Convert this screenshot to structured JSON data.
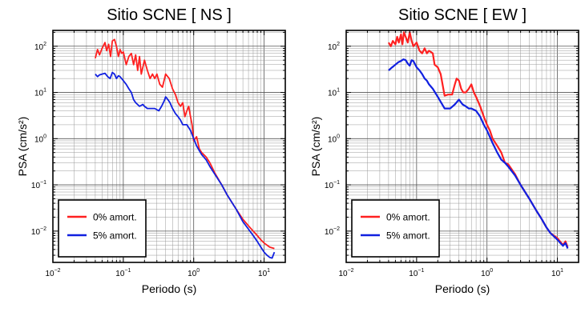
{
  "chart_data": [
    {
      "type": "line",
      "title": "Sitio SCNE [ NS ]",
      "xlabel": "Periodo (s)",
      "ylabel": "PSA (cm/s²)",
      "x_scale": "log",
      "y_scale": "log",
      "xlim": [
        0.01,
        20
      ],
      "ylim": [
        0.0021,
        220
      ],
      "grid": true,
      "legend_position": "bottom-left",
      "x_ticks": [
        {
          "base": "10",
          "exp": "−2",
          "value": 0.01
        },
        {
          "base": "10",
          "exp": "−1",
          "value": 0.1
        },
        {
          "base": "10",
          "exp": "0",
          "value": 1
        },
        {
          "base": "10",
          "exp": "1",
          "value": 10
        }
      ],
      "y_ticks": [
        {
          "base": "10",
          "exp": "−2",
          "value": 0.01
        },
        {
          "base": "10",
          "exp": "−1",
          "value": 0.1
        },
        {
          "base": "10",
          "exp": "0",
          "value": 1
        },
        {
          "base": "10",
          "exp": "1",
          "value": 10
        },
        {
          "base": "10",
          "exp": "2",
          "value": 100
        }
      ],
      "series": [
        {
          "name": "0% amort.",
          "color": "#ff2020",
          "points": [
            [
              0.04,
              55
            ],
            [
              0.043,
              85
            ],
            [
              0.046,
              65
            ],
            [
              0.05,
              90
            ],
            [
              0.055,
              120
            ],
            [
              0.058,
              80
            ],
            [
              0.062,
              110
            ],
            [
              0.066,
              60
            ],
            [
              0.07,
              130
            ],
            [
              0.075,
              140
            ],
            [
              0.08,
              100
            ],
            [
              0.085,
              60
            ],
            [
              0.09,
              85
            ],
            [
              0.095,
              70
            ],
            [
              0.1,
              75
            ],
            [
              0.11,
              40
            ],
            [
              0.12,
              60
            ],
            [
              0.13,
              70
            ],
            [
              0.14,
              40
            ],
            [
              0.15,
              65
            ],
            [
              0.16,
              30
            ],
            [
              0.17,
              60
            ],
            [
              0.18,
              25
            ],
            [
              0.2,
              50
            ],
            [
              0.22,
              30
            ],
            [
              0.24,
              20
            ],
            [
              0.26,
              25
            ],
            [
              0.28,
              20
            ],
            [
              0.3,
              25
            ],
            [
              0.33,
              15
            ],
            [
              0.36,
              13
            ],
            [
              0.4,
              25
            ],
            [
              0.45,
              20
            ],
            [
              0.5,
              12
            ],
            [
              0.55,
              9
            ],
            [
              0.6,
              6
            ],
            [
              0.65,
              5
            ],
            [
              0.7,
              6
            ],
            [
              0.75,
              3
            ],
            [
              0.8,
              4
            ],
            [
              0.85,
              5
            ],
            [
              0.9,
              3
            ],
            [
              0.95,
              2
            ],
            [
              1,
              0.9
            ],
            [
              1.1,
              1.1
            ],
            [
              1.2,
              0.6
            ],
            [
              1.3,
              0.5
            ],
            [
              1.5,
              0.4
            ],
            [
              1.7,
              0.3
            ],
            [
              2,
              0.18
            ],
            [
              2.5,
              0.1
            ],
            [
              3,
              0.06
            ],
            [
              4,
              0.03
            ],
            [
              5,
              0.018
            ],
            [
              6,
              0.013
            ],
            [
              7,
              0.01
            ],
            [
              8,
              0.008
            ],
            [
              9,
              0.0065
            ],
            [
              10,
              0.0055
            ],
            [
              12,
              0.0045
            ],
            [
              14,
              0.0042
            ]
          ]
        },
        {
          "name": "5% amort.",
          "color": "#1020e0",
          "points": [
            [
              0.04,
              25
            ],
            [
              0.043,
              22
            ],
            [
              0.046,
              24
            ],
            [
              0.05,
              25
            ],
            [
              0.055,
              26
            ],
            [
              0.06,
              22
            ],
            [
              0.065,
              20
            ],
            [
              0.07,
              27
            ],
            [
              0.075,
              25
            ],
            [
              0.08,
              20
            ],
            [
              0.085,
              23
            ],
            [
              0.09,
              22
            ],
            [
              0.1,
              18
            ],
            [
              0.11,
              15
            ],
            [
              0.12,
              12
            ],
            [
              0.13,
              10
            ],
            [
              0.14,
              7
            ],
            [
              0.15,
              6
            ],
            [
              0.17,
              5
            ],
            [
              0.19,
              5.5
            ],
            [
              0.2,
              5
            ],
            [
              0.22,
              4.5
            ],
            [
              0.25,
              4.5
            ],
            [
              0.28,
              4.5
            ],
            [
              0.32,
              4
            ],
            [
              0.35,
              5
            ],
            [
              0.38,
              6.5
            ],
            [
              0.4,
              8
            ],
            [
              0.43,
              7
            ],
            [
              0.46,
              6
            ],
            [
              0.5,
              4.5
            ],
            [
              0.55,
              3.5
            ],
            [
              0.6,
              3
            ],
            [
              0.65,
              2.5
            ],
            [
              0.7,
              2
            ],
            [
              0.8,
              2
            ],
            [
              0.9,
              1.5
            ],
            [
              1,
              1
            ],
            [
              1.1,
              0.7
            ],
            [
              1.2,
              0.55
            ],
            [
              1.3,
              0.45
            ],
            [
              1.5,
              0.35
            ],
            [
              1.7,
              0.25
            ],
            [
              2,
              0.17
            ],
            [
              2.5,
              0.1
            ],
            [
              3,
              0.06
            ],
            [
              4,
              0.03
            ],
            [
              5,
              0.016
            ],
            [
              6,
              0.011
            ],
            [
              7,
              0.008
            ],
            [
              8,
              0.006
            ],
            [
              9,
              0.0045
            ],
            [
              10,
              0.0035
            ],
            [
              11,
              0.003
            ],
            [
              12,
              0.0027
            ],
            [
              13,
              0.0026
            ],
            [
              14,
              0.0035
            ]
          ]
        }
      ]
    },
    {
      "type": "line",
      "title": "Sitio SCNE [ EW ]",
      "xlabel": "Periodo (s)",
      "ylabel": "PSA (cm/s²)",
      "x_scale": "log",
      "y_scale": "log",
      "xlim": [
        0.01,
        20
      ],
      "ylim": [
        0.0021,
        220
      ],
      "grid": true,
      "legend_position": "bottom-left",
      "x_ticks": [
        {
          "base": "10",
          "exp": "−2",
          "value": 0.01
        },
        {
          "base": "10",
          "exp": "−1",
          "value": 0.1
        },
        {
          "base": "10",
          "exp": "0",
          "value": 1
        },
        {
          "base": "10",
          "exp": "1",
          "value": 10
        }
      ],
      "y_ticks": [
        {
          "base": "10",
          "exp": "−2",
          "value": 0.01
        },
        {
          "base": "10",
          "exp": "−1",
          "value": 0.1
        },
        {
          "base": "10",
          "exp": "0",
          "value": 1
        },
        {
          "base": "10",
          "exp": "1",
          "value": 10
        },
        {
          "base": "10",
          "exp": "2",
          "value": 100
        }
      ],
      "series": [
        {
          "name": "0% amort.",
          "color": "#ff2020",
          "points": [
            [
              0.04,
              120
            ],
            [
              0.043,
              100
            ],
            [
              0.046,
              130
            ],
            [
              0.05,
              110
            ],
            [
              0.053,
              160
            ],
            [
              0.056,
              120
            ],
            [
              0.06,
              180
            ],
            [
              0.063,
              110
            ],
            [
              0.066,
              200
            ],
            [
              0.07,
              160
            ],
            [
              0.075,
              120
            ],
            [
              0.08,
              200
            ],
            [
              0.085,
              130
            ],
            [
              0.09,
              100
            ],
            [
              0.1,
              120
            ],
            [
              0.11,
              80
            ],
            [
              0.12,
              70
            ],
            [
              0.13,
              90
            ],
            [
              0.14,
              70
            ],
            [
              0.15,
              80
            ],
            [
              0.17,
              70
            ],
            [
              0.18,
              40
            ],
            [
              0.2,
              35
            ],
            [
              0.22,
              25
            ],
            [
              0.25,
              8.5
            ],
            [
              0.28,
              9
            ],
            [
              0.32,
              9
            ],
            [
              0.35,
              15
            ],
            [
              0.37,
              20
            ],
            [
              0.4,
              18
            ],
            [
              0.43,
              12
            ],
            [
              0.46,
              10
            ],
            [
              0.5,
              10
            ],
            [
              0.55,
              12
            ],
            [
              0.6,
              15
            ],
            [
              0.65,
              10
            ],
            [
              0.7,
              8
            ],
            [
              0.8,
              5
            ],
            [
              0.9,
              3
            ],
            [
              1,
              2
            ],
            [
              1.1,
              1.5
            ],
            [
              1.2,
              1
            ],
            [
              1.4,
              0.7
            ],
            [
              1.6,
              0.5
            ],
            [
              1.8,
              0.3
            ],
            [
              2,
              0.28
            ],
            [
              2.5,
              0.17
            ],
            [
              3,
              0.1
            ],
            [
              4,
              0.05
            ],
            [
              5,
              0.028
            ],
            [
              6,
              0.018
            ],
            [
              7,
              0.012
            ],
            [
              8,
              0.009
            ],
            [
              10,
              0.007
            ],
            [
              12,
              0.005
            ],
            [
              13,
              0.006
            ],
            [
              14,
              0.0045
            ]
          ]
        },
        {
          "name": "5% amort.",
          "color": "#1020e0",
          "points": [
            [
              0.04,
              30
            ],
            [
              0.045,
              35
            ],
            [
              0.05,
              40
            ],
            [
              0.055,
              45
            ],
            [
              0.06,
              48
            ],
            [
              0.065,
              52
            ],
            [
              0.07,
              50
            ],
            [
              0.075,
              42
            ],
            [
              0.08,
              38
            ],
            [
              0.085,
              50
            ],
            [
              0.09,
              48
            ],
            [
              0.1,
              35
            ],
            [
              0.11,
              30
            ],
            [
              0.12,
              25
            ],
            [
              0.13,
              20
            ],
            [
              0.14,
              18
            ],
            [
              0.15,
              15
            ],
            [
              0.17,
              12
            ],
            [
              0.2,
              8
            ],
            [
              0.25,
              4.5
            ],
            [
              0.3,
              4.5
            ],
            [
              0.35,
              5.5
            ],
            [
              0.4,
              7
            ],
            [
              0.45,
              5.5
            ],
            [
              0.5,
              5
            ],
            [
              0.55,
              4.5
            ],
            [
              0.6,
              4.5
            ],
            [
              0.7,
              4
            ],
            [
              0.8,
              3
            ],
            [
              0.9,
              2
            ],
            [
              1,
              1.5
            ],
            [
              1.2,
              0.8
            ],
            [
              1.4,
              0.5
            ],
            [
              1.6,
              0.35
            ],
            [
              1.8,
              0.3
            ],
            [
              2,
              0.25
            ],
            [
              2.5,
              0.16
            ],
            [
              3,
              0.1
            ],
            [
              4,
              0.05
            ],
            [
              5,
              0.028
            ],
            [
              6,
              0.018
            ],
            [
              7,
              0.012
            ],
            [
              8,
              0.009
            ],
            [
              10,
              0.0065
            ],
            [
              12,
              0.0048
            ],
            [
              13,
              0.0055
            ],
            [
              14,
              0.0042
            ]
          ]
        }
      ]
    }
  ]
}
